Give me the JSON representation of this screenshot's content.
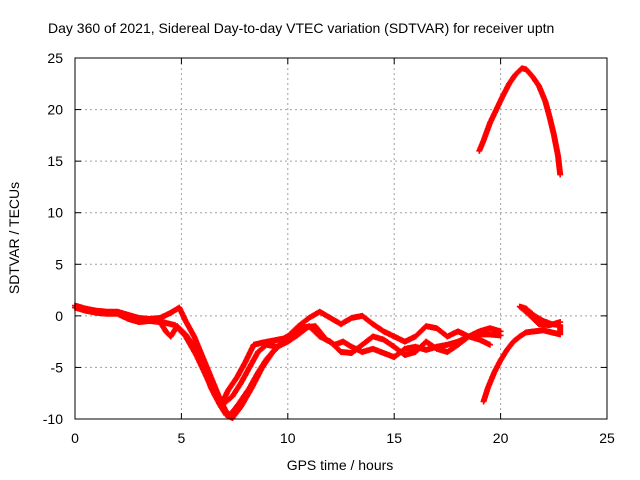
{
  "chart_data": {
    "type": "scatter",
    "title": "Day 360 of 2021, Sidereal Day-to-day VTEC variation (SDTVAR) for receiver uptn",
    "xlabel": "GPS time / hours",
    "ylabel": "SDTVAR / TECUs",
    "xlim": [
      0,
      25
    ],
    "ylim": [
      -10,
      25
    ],
    "xticks": [
      0,
      5,
      10,
      15,
      20,
      25
    ],
    "yticks": [
      -10,
      -5,
      0,
      5,
      10,
      15,
      20,
      25
    ],
    "grid": true,
    "marker": "+",
    "color": "#ff0000",
    "series": [
      {
        "name": "track-1",
        "points": [
          [
            0,
            1.0
          ],
          [
            0.5,
            0.7
          ],
          [
            1,
            0.5
          ],
          [
            1.5,
            0.4
          ],
          [
            2,
            0.4
          ],
          [
            2.5,
            0.1
          ],
          [
            3,
            -0.2
          ],
          [
            3.5,
            -0.3
          ],
          [
            4,
            -0.2
          ],
          [
            4.5,
            0.3
          ],
          [
            4.9,
            0.8
          ],
          [
            5.2,
            -0.5
          ],
          [
            5.6,
            -2.0
          ],
          [
            6,
            -4.0
          ],
          [
            6.4,
            -6.0
          ],
          [
            6.8,
            -8.0
          ],
          [
            7.1,
            -9.3
          ],
          [
            7.3,
            -9.6
          ],
          [
            7.7,
            -8.5
          ],
          [
            8.2,
            -7.0
          ],
          [
            8.6,
            -5.5
          ],
          [
            9,
            -4.2
          ],
          [
            9.5,
            -3.0
          ],
          [
            10,
            -2.0
          ],
          [
            10.5,
            -1.0
          ],
          [
            11,
            -0.2
          ],
          [
            11.5,
            0.4
          ],
          [
            12,
            -0.2
          ],
          [
            12.5,
            -0.8
          ],
          [
            13,
            -0.2
          ],
          [
            13.5,
            0.0
          ],
          [
            14,
            -0.8
          ],
          [
            14.5,
            -1.5
          ],
          [
            15,
            -2.0
          ],
          [
            15.5,
            -2.5
          ],
          [
            16,
            -2.0
          ],
          [
            16.5,
            -1.0
          ],
          [
            17,
            -1.2
          ],
          [
            17.5,
            -2.0
          ],
          [
            18,
            -1.5
          ],
          [
            18.5,
            -2.0
          ],
          [
            19,
            -1.5
          ],
          [
            19.5,
            -1.2
          ],
          [
            20,
            -1.5
          ]
        ]
      },
      {
        "name": "track-2",
        "points": [
          [
            0,
            0.8
          ],
          [
            0.5,
            0.5
          ],
          [
            1,
            0.3
          ],
          [
            1.5,
            0.2
          ],
          [
            2,
            0.2
          ],
          [
            2.5,
            -0.3
          ],
          [
            3,
            -0.6
          ],
          [
            3.5,
            -0.5
          ],
          [
            4,
            -0.6
          ],
          [
            4.3,
            -1.6
          ],
          [
            4.5,
            -2.0
          ],
          [
            4.8,
            -1.0
          ],
          [
            5.2,
            -1.8
          ],
          [
            5.6,
            -3.0
          ],
          [
            6,
            -4.8
          ],
          [
            6.4,
            -7.0
          ],
          [
            6.8,
            -8.6
          ],
          [
            7.1,
            -9.6
          ],
          [
            7.4,
            -9.9
          ],
          [
            7.8,
            -8.8
          ],
          [
            8.3,
            -7.0
          ],
          [
            8.8,
            -5.0
          ],
          [
            9.3,
            -3.5
          ],
          [
            9.8,
            -2.5
          ],
          [
            10.3,
            -1.7
          ],
          [
            10.8,
            -1.1
          ],
          [
            11.3,
            -1.0
          ],
          [
            11.8,
            -2.3
          ],
          [
            12.2,
            -2.8
          ],
          [
            12.6,
            -2.5
          ],
          [
            13,
            -3.0
          ],
          [
            13.5,
            -3.5
          ],
          [
            14,
            -3.2
          ],
          [
            14.5,
            -3.6
          ],
          [
            15,
            -4.0
          ],
          [
            15.5,
            -3.2
          ],
          [
            16,
            -3.0
          ],
          [
            16.5,
            -3.3
          ],
          [
            17,
            -3.0
          ],
          [
            17.5,
            -2.8
          ],
          [
            18,
            -2.5
          ],
          [
            18.5,
            -2.0
          ],
          [
            19,
            -1.8
          ],
          [
            19.5,
            -1.8
          ],
          [
            20,
            -1.9
          ]
        ]
      },
      {
        "name": "track-3",
        "points": [
          [
            3.3,
            -0.3
          ],
          [
            3.8,
            -0.4
          ],
          [
            4.3,
            -0.7
          ],
          [
            4.7,
            -0.9
          ],
          [
            5.2,
            -2.0
          ],
          [
            5.7,
            -3.8
          ],
          [
            6.2,
            -6.0
          ],
          [
            6.6,
            -7.8
          ],
          [
            7,
            -8.5
          ],
          [
            7.4,
            -7.8
          ],
          [
            7.8,
            -6.5
          ],
          [
            8.2,
            -5.0
          ],
          [
            8.6,
            -3.5
          ],
          [
            9,
            -2.8
          ],
          [
            9.5,
            -3.0
          ],
          [
            10,
            -2.5
          ],
          [
            10.5,
            -1.8
          ],
          [
            11,
            -1.0
          ],
          [
            11.5,
            -2.0
          ],
          [
            12,
            -2.5
          ],
          [
            12.5,
            -3.5
          ],
          [
            13,
            -3.6
          ],
          [
            13.5,
            -2.8
          ],
          [
            14,
            -2.0
          ],
          [
            14.5,
            -2.3
          ],
          [
            15,
            -3.0
          ],
          [
            15.5,
            -3.8
          ],
          [
            16,
            -3.5
          ],
          [
            16.5,
            -2.5
          ],
          [
            17,
            -3.2
          ],
          [
            17.5,
            -3.5
          ],
          [
            18,
            -2.8
          ],
          [
            18.5,
            -2.0
          ],
          [
            19,
            -2.3
          ],
          [
            19.5,
            -2.8
          ]
        ]
      },
      {
        "name": "track-4",
        "points": [
          [
            6.5,
            -7.0
          ],
          [
            6.9,
            -8.5
          ],
          [
            7.2,
            -7.2
          ],
          [
            7.6,
            -6.0
          ],
          [
            8.0,
            -4.5
          ],
          [
            8.4,
            -2.8
          ],
          [
            8.8,
            -2.6
          ],
          [
            9.3,
            -2.4
          ],
          [
            9.8,
            -2.2
          ],
          [
            10.4,
            -1.5
          ]
        ]
      },
      {
        "name": "track-5",
        "points": [
          [
            19.2,
            -8.3
          ],
          [
            19.4,
            -7.0
          ],
          [
            19.7,
            -5.5
          ],
          [
            20.0,
            -4.3
          ],
          [
            20.3,
            -3.3
          ],
          [
            20.6,
            -2.5
          ],
          [
            20.9,
            -2.0
          ],
          [
            21.2,
            -1.6
          ],
          [
            21.6,
            -1.5
          ],
          [
            22.0,
            -1.4
          ],
          [
            22.4,
            -1.6
          ],
          [
            22.8,
            -1.8
          ],
          [
            22.8,
            -0.9
          ],
          [
            22.4,
            -0.8
          ],
          [
            22.0,
            -0.5
          ],
          [
            21.6,
            0.0
          ],
          [
            21.2,
            0.7
          ],
          [
            20.9,
            0.9
          ],
          [
            21.3,
            0.2
          ],
          [
            21.8,
            -0.8
          ],
          [
            22.3,
            -0.9
          ],
          [
            22.8,
            -0.6
          ]
        ]
      },
      {
        "name": "track-6",
        "points": [
          [
            19.0,
            16.0
          ],
          [
            19.2,
            17.0
          ],
          [
            19.5,
            18.7
          ],
          [
            19.8,
            20.0
          ],
          [
            20.1,
            21.3
          ],
          [
            20.4,
            22.5
          ],
          [
            20.7,
            23.4
          ],
          [
            21.0,
            24.0
          ],
          [
            21.2,
            23.9
          ],
          [
            21.5,
            23.2
          ],
          [
            21.8,
            22.3
          ],
          [
            22.1,
            20.8
          ],
          [
            22.3,
            19.3
          ],
          [
            22.5,
            17.6
          ],
          [
            22.7,
            15.5
          ],
          [
            22.8,
            13.7
          ]
        ]
      }
    ]
  }
}
